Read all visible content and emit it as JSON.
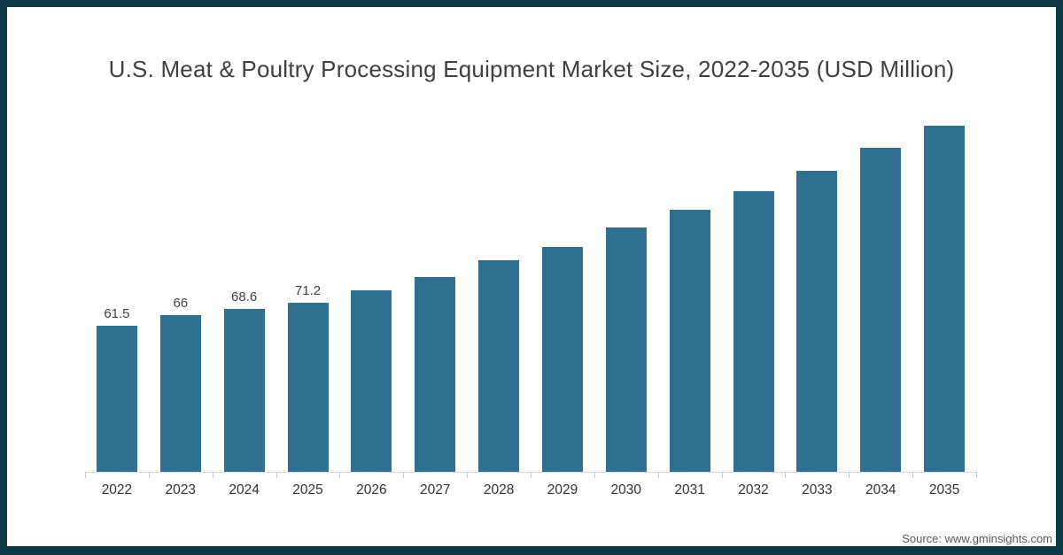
{
  "title": "U.S. Meat & Poultry Processing Equipment Market Size, 2022-2035 (USD Million)",
  "source": "Source: www.gminsights.com",
  "colors": {
    "bar": "#2f7090",
    "frame_border": "#0d3947",
    "title_text": "#3f3f3f",
    "value_label_text": "#404040",
    "axis_label_text": "#333333",
    "axis_line": "#d9d9d9",
    "source_text": "#595959",
    "background": "#ffffff"
  },
  "chart_data": {
    "type": "bar",
    "title": "U.S. Meat & Poultry Processing Equipment Market Size, 2022-2035 (USD Million)",
    "categories": [
      "2022",
      "2023",
      "2024",
      "2025",
      "2026",
      "2027",
      "2028",
      "2029",
      "2030",
      "2031",
      "2032",
      "2033",
      "2034",
      "2035"
    ],
    "values": [
      61.5,
      66,
      68.6,
      71.2,
      76.4,
      82.1,
      89.2,
      94.8,
      102.8,
      110.2,
      118.1,
      126.7,
      136.4,
      145.8
    ],
    "data_labels": [
      "61.5",
      "66",
      "68.6",
      "71.2",
      "",
      "",
      "",
      "",
      "",
      "",
      "",
      "",
      "",
      ""
    ],
    "xlabel": "",
    "ylabel": "",
    "ylim": [
      0,
      150
    ],
    "grid": false,
    "legend": false,
    "y_axis_shown": false
  }
}
